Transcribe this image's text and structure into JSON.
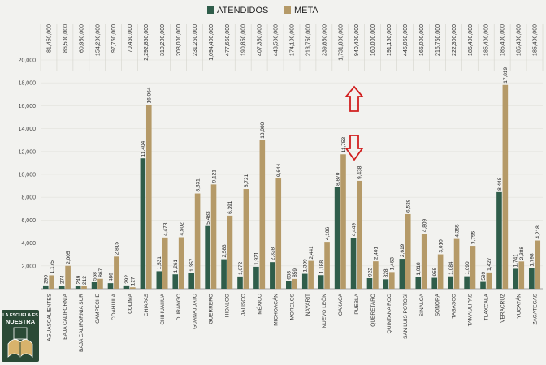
{
  "colors": {
    "atendidos": "#2f5d4a",
    "meta": "#b59a68",
    "arrow": "#d11f1f",
    "logo_bg": "#2b4a36",
    "logo_book": "#d8b36c"
  },
  "legend": {
    "atendidos": "ATENDIDOS",
    "meta": "META"
  },
  "logo": {
    "line1": "LA ESCUELA ES",
    "line2": "NUESTRA"
  },
  "icons": {
    "up": "arrow-up-outline-icon",
    "down": "arrow-down-outline-icon",
    "logo": "open-book-logo-icon"
  },
  "chart_data": {
    "type": "bar",
    "ylim": [
      0,
      20000
    ],
    "yticks": [
      "2,000",
      "4,000",
      "6,000",
      "8,000",
      "10,000",
      "12,000",
      "14,000",
      "16,000",
      "18,000",
      "20,000"
    ],
    "categories": [
      "AGUASCALIENTES",
      "BAJA CALIFORNIA",
      "BAJA CALIFORNIA SUR",
      "CAMPECHE",
      "COAHUILA",
      "COLIMA",
      "CHIAPAS",
      "CHIHUAHUA",
      "DURANGO",
      "GUANAJUATO",
      "GUERRERO",
      "HIDALGO",
      "JALISCO",
      "MÉXICO",
      "MICHOACÁN",
      "MORELOS",
      "NAYARIT",
      "NUEVO LEÓN",
      "OAXACA",
      "PUEBLA",
      "QUERÉTARO",
      "QUINTANA ROO",
      "SAN LUIS POTOSÍ",
      "SINALOA",
      "SONORA",
      "TABASCO",
      "TAMAULIPAS",
      "TLAXCALA",
      "VERACRUZ",
      "YUCATÁN",
      "ZACATECAS"
    ],
    "top_amounts": [
      "81,450,000",
      "86,500,000",
      "60,950,000",
      "154,200,000",
      "97,750,000",
      "70,450,000",
      "2,292,850,000",
      "310,200,000",
      "203,000,000",
      "231,250,000",
      "1,094,400,000",
      "477,650,000",
      "190,850,000",
      "407,350,000",
      "443,500,000",
      "174,100,000",
      "213,750,000",
      "239,850,000",
      "1,731,800,000",
      "940,400,000",
      "160,000,000",
      "191,150,000",
      "445,050,000",
      "165,000,000",
      "216,750,000",
      "222,300,000",
      "185,400,000",
      "185,400,000",
      "185,400,000",
      "185,400,000",
      "185,400,000"
    ],
    "series": [
      {
        "name": "ATENDIDOS",
        "values": [
          290,
          274,
          249,
          568,
          486,
          292,
          11404,
          1531,
          1261,
          1357,
          5483,
          2583,
          1072,
          1921,
          2328,
          653,
          1309,
          1188,
          8870,
          4449,
          922,
          828,
          2619,
          1018,
          955,
          1084,
          1090,
          599,
          8448,
          1741,
          1798
        ],
        "labels": [
          "290",
          "274",
          "249",
          "568",
          "486",
          "292",
          "11,404",
          "1,531",
          "1,261",
          "1,357",
          "5,483",
          "2,583",
          "1,072",
          "1,921",
          "2,328",
          "653",
          "1,309",
          "1,188",
          "8,870",
          "4,449",
          "922",
          "828",
          "2,619",
          "1,018",
          "955",
          "1,084",
          "1,090",
          "599",
          "8,448",
          "1,741",
          "1,798"
        ]
      },
      {
        "name": "META",
        "values": [
          1175,
          2005,
          212,
          867,
          2815,
          127,
          16064,
          4478,
          4502,
          8331,
          9121,
          6391,
          8721,
          13000,
          9644,
          859,
          2441,
          4106,
          11753,
          9438,
          2401,
          1463,
          6528,
          4809,
          3010,
          4355,
          3755,
          1427,
          17819,
          2388,
          4218
        ],
        "labels": [
          "1,175",
          "2,005",
          "212",
          "867",
          "2,815",
          "127",
          "16,064",
          "4,478",
          "4,502",
          "8,331",
          "9,121",
          "6,391",
          "8,721",
          "13,000",
          "9,644",
          "859",
          "2,441",
          "4,106",
          "11,753",
          "9,438",
          "2,401",
          "1,463",
          "6,528",
          "4,809",
          "3,010",
          "4,355",
          "3,755",
          "1,427",
          "17,819",
          "2,388",
          "4,218"
        ]
      }
    ]
  }
}
